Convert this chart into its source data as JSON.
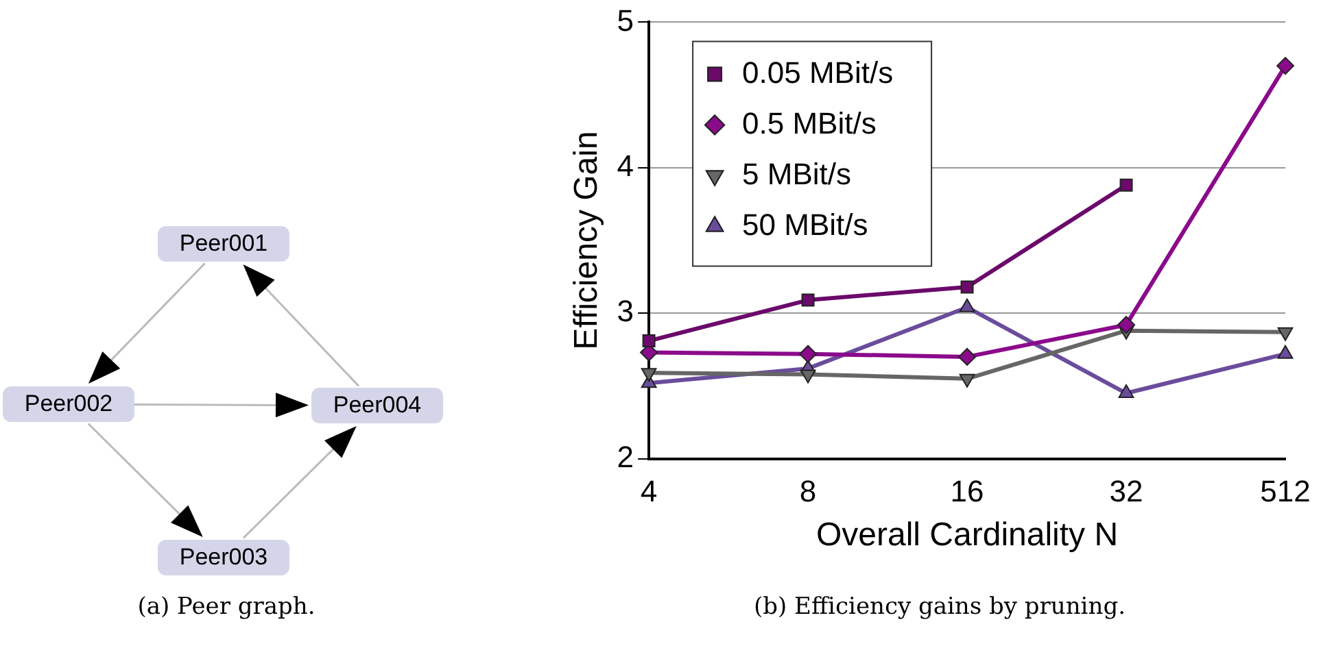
{
  "chart_data": [
    {
      "type": "other",
      "annotations": [
        "Peer001",
        "Peer002",
        "Peer003",
        "Peer004",
        "(a) Peer graph."
      ]
    },
    {
      "type": "line",
      "xlabel": "Overall Cardinality N",
      "ylabel": "Efficiency Gain",
      "categories": [
        "4",
        "8",
        "16",
        "32",
        "512"
      ],
      "ylim": [
        2,
        5
      ],
      "yticks": [
        2,
        3,
        4,
        5
      ],
      "grid": "y",
      "legend": "top left",
      "series": [
        {
          "name": "0.05 MBit/s",
          "color": "#6b0a6b",
          "marker": "square",
          "values": [
            2.81,
            3.09,
            3.18,
            3.88,
            null
          ]
        },
        {
          "name": "0.5 MBit/s",
          "color": "#8b0a8b",
          "marker": "diamond",
          "values": [
            2.73,
            2.72,
            2.7,
            2.92,
            4.7
          ]
        },
        {
          "name": "5 MBit/s",
          "color": "#666666",
          "marker": "triangle_down",
          "values": [
            2.59,
            2.58,
            2.55,
            2.88,
            2.87
          ]
        },
        {
          "name": "50 MBit/s",
          "color": "#6a4c9c",
          "marker": "triangle",
          "values": [
            2.52,
            2.62,
            3.04,
            2.45,
            2.72
          ]
        }
      ],
      "annotations": [
        "(b) Efficiency gains by pruning."
      ]
    }
  ]
}
